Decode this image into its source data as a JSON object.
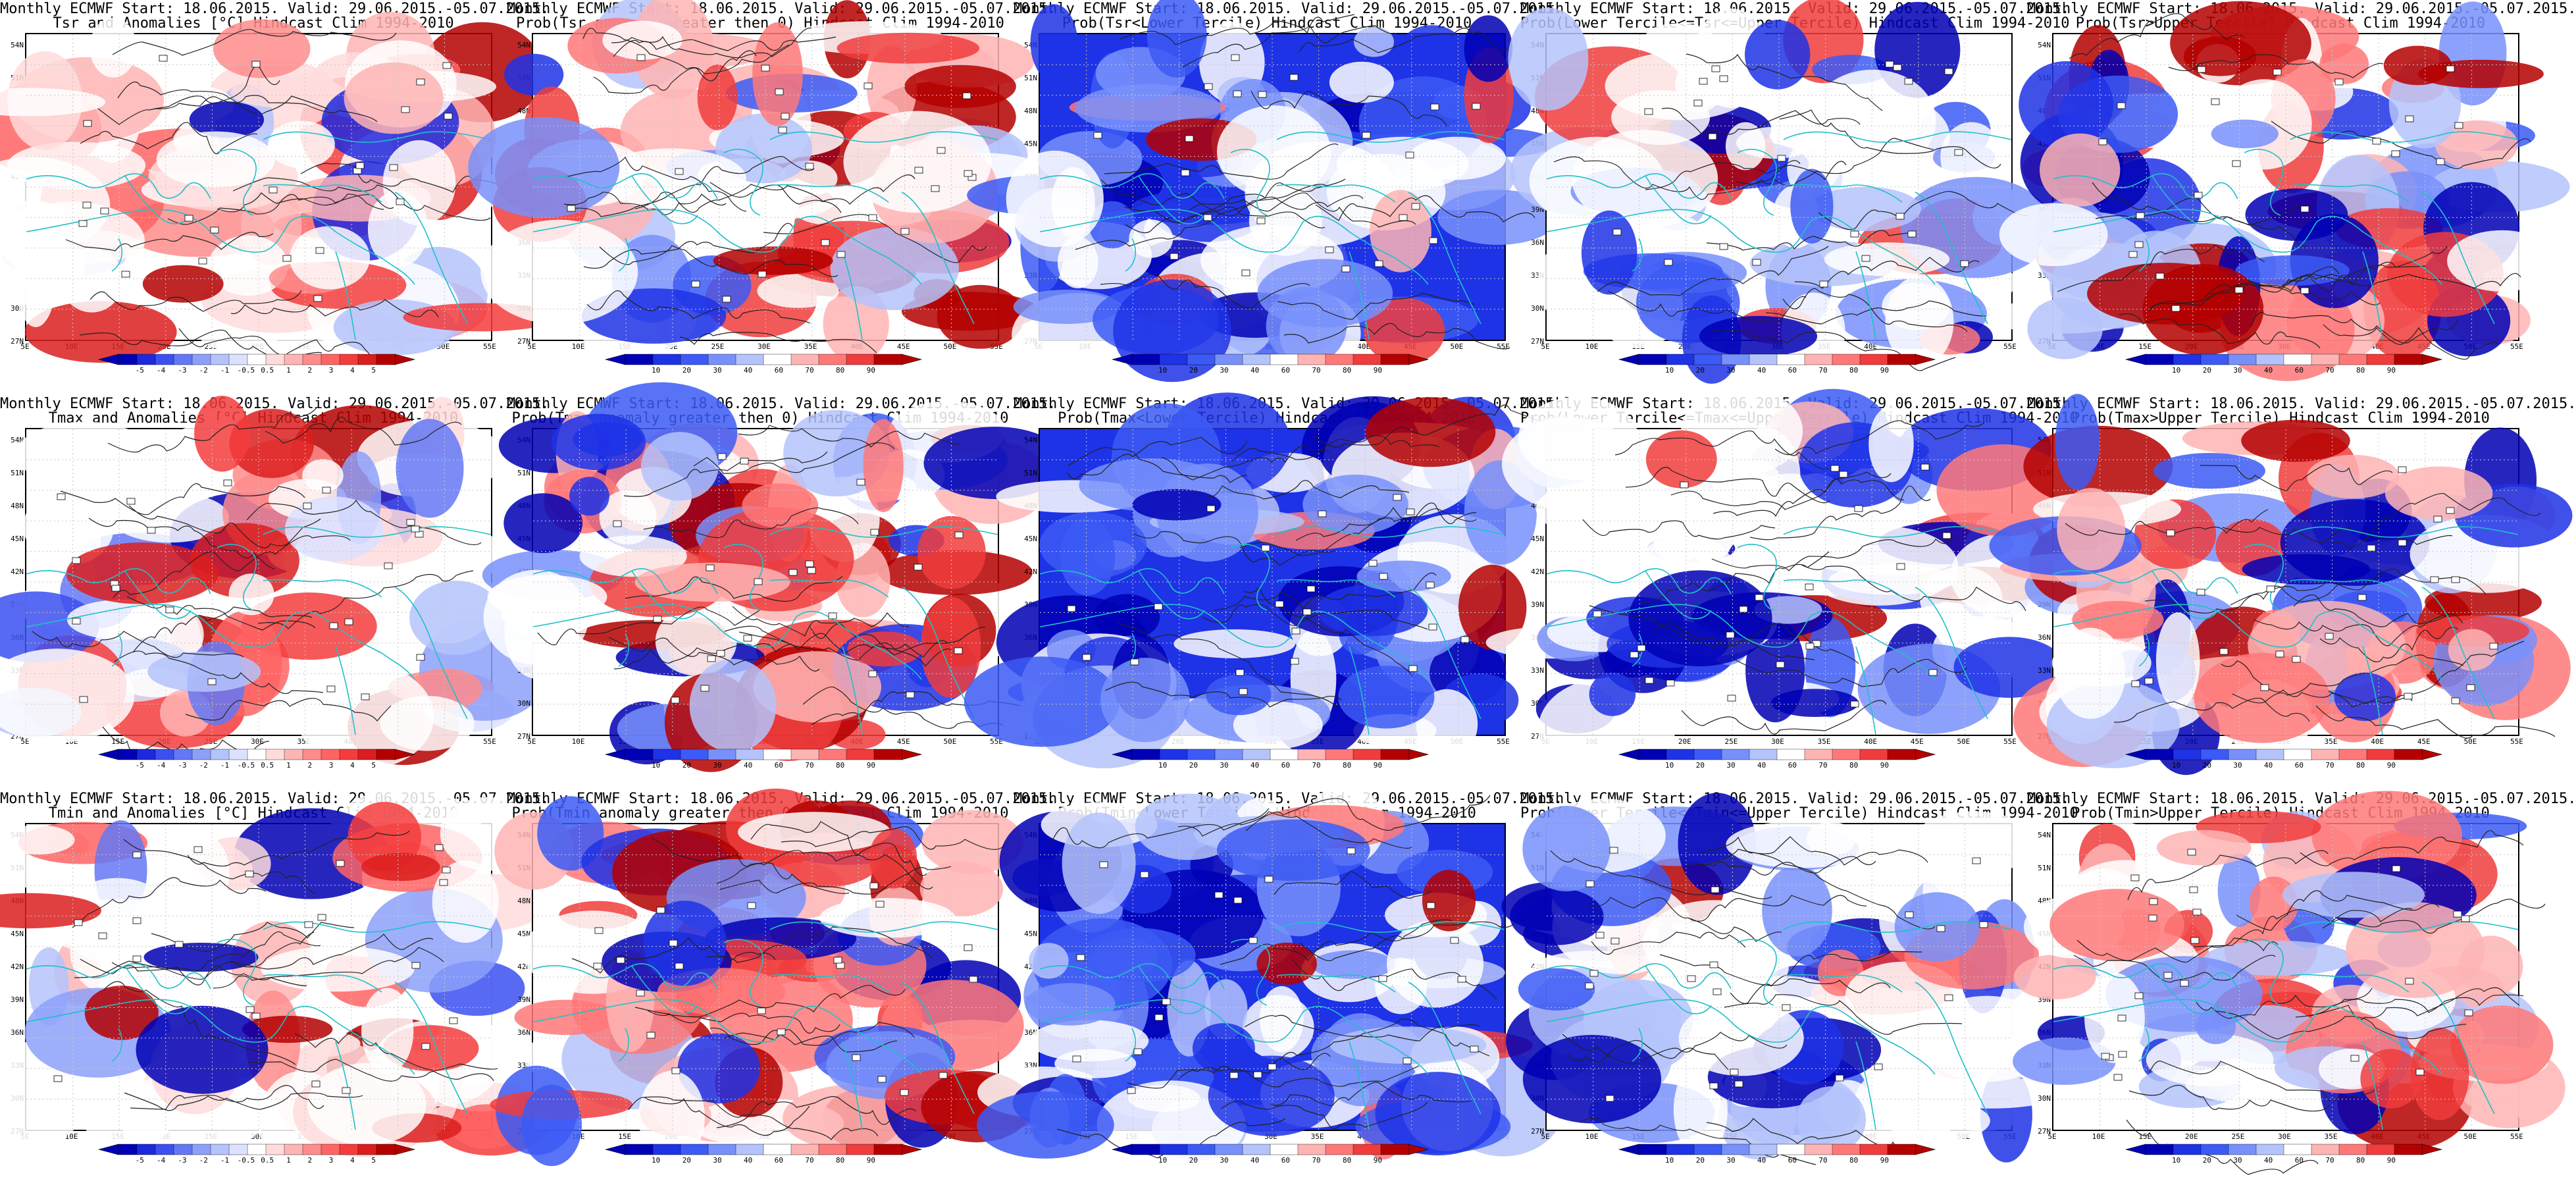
{
  "row_headers": [
    "Monthly ECMWF Start: 18.06.2015. Valid: 29.06.2015.-05.07.2015.",
    "Monthly ECMWF Start: 18.06.2015. Valid: 29.06.2015.-05.07.2015.",
    "Monthly ECMWF Start: 18.06.2015. Valid: 29.06.2015.-05.07.2015."
  ],
  "panels": [
    {
      "title": "Monthly ECMWF Start: 18.06.2015. Valid: 29.06.2015.-05.07.2015.",
      "subtitle": "Tsr and Anomalies [°C] Hindcast Clim 1994-2010",
      "scale": "anom",
      "warm": 0.45,
      "cold": 0.1
    },
    {
      "title": "Monthly ECMWF Start: 18.06.2015. Valid: 29.06.2015.-05.07.2015.",
      "subtitle": "Prob(Tsr anomaly greater then 0) Hindcast Clim 1994-2010",
      "scale": "prob",
      "warm": 0.6,
      "cold": 0.25
    },
    {
      "title": "Monthly ECMWF Start: 18.06.2015. Valid: 29.06.2015.-05.07.2015.",
      "subtitle": "Prob(Tsr<Lower Tercile) Hindcast Clim 1994-2010",
      "scale": "prob",
      "warm": 0.05,
      "cold": 0.8
    },
    {
      "title": "Monthly ECMWF Start: 18.06.2015. Valid: 29.06.2015.-05.07.2015.",
      "subtitle": "Prob(Lower Tercile<=Tsr<=Upper Tercile) Hindcast Clim 1994-2010",
      "scale": "prob",
      "warm": 0.05,
      "cold": 0.5
    },
    {
      "title": "Monthly ECMWF Start: 18.06.2015. Valid: 29.06.2015.-05.07.2015.",
      "subtitle": "Prob(Tsr>Upper Tercile) Hindcast Clim 1994-2010",
      "scale": "prob",
      "warm": 0.5,
      "cold": 0.35
    },
    {
      "title": "Monthly ECMWF Start: 18.06.2015. Valid: 29.06.2015.-05.07.2015.",
      "subtitle": "Tmax and Anomalies [°C] Hindcast Clim 1994-2010",
      "scale": "anom",
      "warm": 0.5,
      "cold": 0.08
    },
    {
      "title": "Monthly ECMWF Start: 18.06.2015. Valid: 29.06.2015.-05.07.2015.",
      "subtitle": "Prob(Tmax anomaly greater then 0) Hindcast Clim 1994-2010",
      "scale": "prob",
      "warm": 0.6,
      "cold": 0.25
    },
    {
      "title": "Monthly ECMWF Start: 18.06.2015. Valid: 29.06.2015.-05.07.2015.",
      "subtitle": "Prob(Tmax<Lower Tercile) Hindcast Clim 1994-2010",
      "scale": "prob",
      "warm": 0.05,
      "cold": 0.8
    },
    {
      "title": "Monthly ECMWF Start: 18.06.2015. Valid: 29.06.2015.-05.07.2015.",
      "subtitle": "Prob(Lower Tercile<=Tmax<=Upper Tercile) Hindcast Clim 1994-2010",
      "scale": "prob",
      "warm": 0.05,
      "cold": 0.55
    },
    {
      "title": "Monthly ECMWF Start: 18.06.2015. Valid: 29.06.2015.-05.07.2015.",
      "subtitle": "Prob(Tmax>Upper Tercile) Hindcast Clim 1994-2010",
      "scale": "prob",
      "warm": 0.5,
      "cold": 0.35
    },
    {
      "title": "Monthly ECMWF Start: 18.06.2015. Valid: 29.06.2015.-05.07.2015.",
      "subtitle": "Tmin and Anomalies [°C] Hindcast Clim 1994-2010",
      "scale": "anom",
      "warm": 0.35,
      "cold": 0.1
    },
    {
      "title": "Monthly ECMWF Start: 18.06.2015. Valid: 29.06.2015.-05.07.2015.",
      "subtitle": "Prob(Tmin anomaly greater then 0) Hindcast Clim 1994-2010",
      "scale": "prob",
      "warm": 0.6,
      "cold": 0.3
    },
    {
      "title": "Monthly ECMWF Start: 18.06.2015. Valid: 29.06.2015.-05.07.2015.",
      "subtitle": "Prob(Tmin<Lower Tercile) Hindcast Clim 1994-2010",
      "scale": "prob",
      "warm": 0.05,
      "cold": 0.8
    },
    {
      "title": "Monthly ECMWF Start: 18.06.2015. Valid: 29.06.2015.-05.07.2015.",
      "subtitle": "Prob(Lower Tercile<=Tmin<=Upper Tercile) Hindcast Clim 1994-2010",
      "scale": "prob",
      "warm": 0.15,
      "cold": 0.45
    },
    {
      "title": "Monthly ECMWF Start: 18.06.2015. Valid: 29.06.2015.-05.07.2015.",
      "subtitle": "Prob(Tmin>Upper Tercile) Hindcast Clim 1994-2010",
      "scale": "prob",
      "warm": 0.45,
      "cold": 0.4
    }
  ],
  "lat_labels": [
    "54N",
    "51N",
    "48N",
    "45N",
    "42N",
    "39N",
    "36N",
    "33N",
    "30N",
    "27N"
  ],
  "lon_labels": [
    "5E",
    "10E",
    "15E",
    "20E",
    "25E",
    "30E",
    "35E",
    "40E",
    "45E",
    "50E",
    "55E"
  ],
  "colorbars": {
    "anom": {
      "labels": [
        "-5",
        "-4",
        "-3",
        "-2",
        "-1",
        "-0.5",
        "0.5",
        "1",
        "2",
        "3",
        "4",
        "5"
      ],
      "colors": [
        "#0000b4",
        "#1e28dc",
        "#3c50f0",
        "#6478f5",
        "#8ca0fa",
        "#b4c3fc",
        "#dce1ff",
        "#ffffff",
        "#ffdcdc",
        "#ffb4b4",
        "#ff8c8c",
        "#ff6464",
        "#f53c3c",
        "#dc1e1e",
        "#b40000"
      ]
    },
    "prob": {
      "labels": [
        "10",
        "20",
        "30",
        "40",
        "60",
        "70",
        "80",
        "90"
      ],
      "colors": [
        "#0000b4",
        "#1e32e6",
        "#3c5af5",
        "#7890fa",
        "#b4c3fc",
        "#ffffff",
        "#ffb4b4",
        "#ff7878",
        "#f03c3c",
        "#b40000"
      ]
    }
  },
  "map_colors": {
    "coast": "#20c0c8",
    "contour": "#222222",
    "grid": "#c8c8c8"
  }
}
